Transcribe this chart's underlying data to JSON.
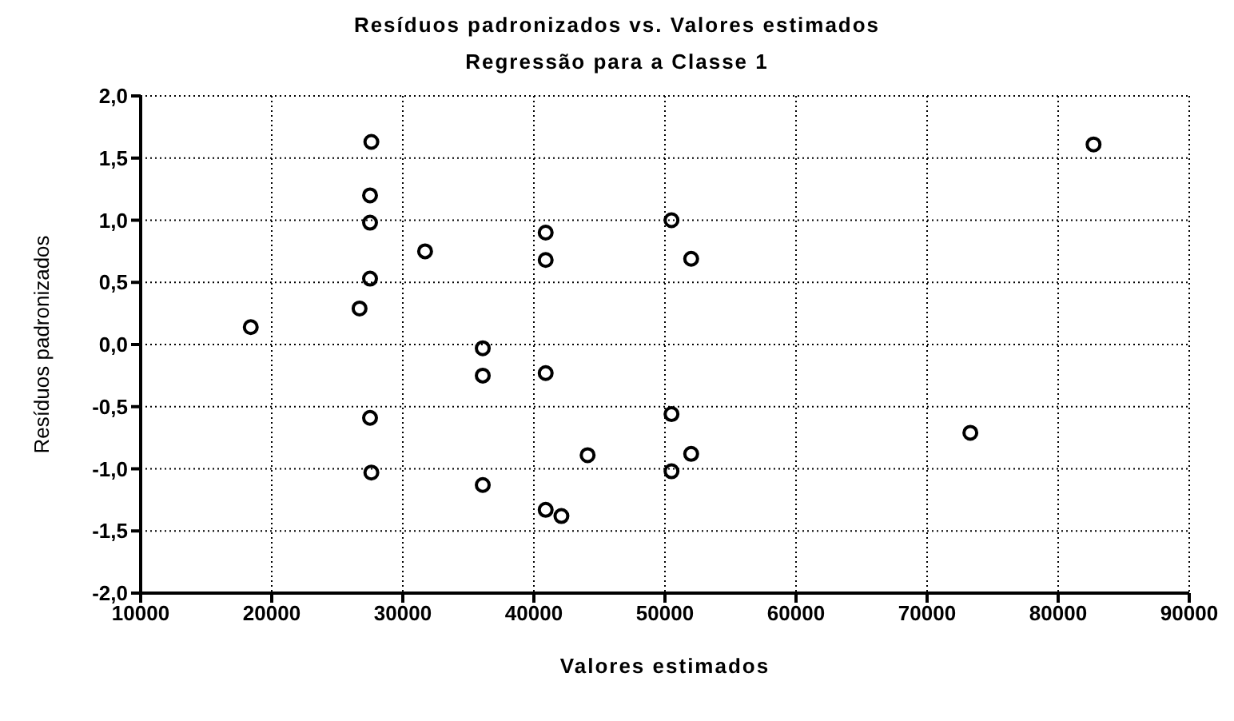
{
  "chart_data": {
    "type": "scatter",
    "title": "Resíduos padronizados vs. Valores estimados",
    "subtitle": "Regressão para a Classe 1",
    "xlabel": "Valores estimados",
    "ylabel": "Resíduos padronizados",
    "x": [
      18400,
      27600,
      27500,
      27500,
      27500,
      26700,
      31700,
      36100,
      36100,
      40900,
      40900,
      40900,
      27500,
      27600,
      36100,
      44100,
      40900,
      42100,
      50500,
      52000,
      50500,
      52000,
      50500,
      73300,
      82700
    ],
    "series": [
      {
        "color": "#000000",
        "values": [
          0.14,
          1.63,
          1.2,
          0.98,
          0.53,
          0.29,
          0.75,
          -0.03,
          -0.25,
          0.9,
          0.68,
          -0.23,
          -0.59,
          -1.03,
          -1.13,
          -0.89,
          -1.33,
          -1.38,
          1.0,
          0.69,
          -0.56,
          -0.88,
          -1.02,
          -0.71,
          1.61
        ]
      }
    ],
    "xlim": [
      10000,
      90000
    ],
    "xticks": [
      10000,
      20000,
      30000,
      40000,
      50000,
      60000,
      70000,
      80000,
      90000
    ],
    "ylim": [
      -2,
      2
    ],
    "yticks": [
      {
        "value": -2,
        "label": "-2,0"
      },
      {
        "value": -1.5,
        "label": "-1,5"
      },
      {
        "value": -1,
        "label": "-1,0"
      },
      {
        "value": -0.5,
        "label": "-0,5"
      },
      {
        "value": 0,
        "label": "0,0"
      },
      {
        "value": 0.5,
        "label": "0,5"
      },
      {
        "value": 1,
        "label": "1,0"
      },
      {
        "value": 1.5,
        "label": "1,5"
      },
      {
        "value": 2,
        "label": "2,0"
      }
    ],
    "grid": true,
    "marker": "circle",
    "legend": false
  }
}
